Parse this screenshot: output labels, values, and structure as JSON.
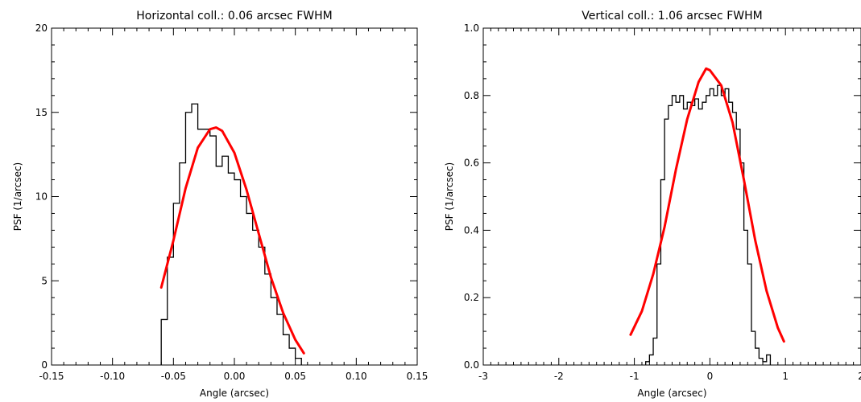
{
  "chart_data": [
    {
      "type": "line",
      "title": "Horizontal coll.: 0.06 arcsec FWHM",
      "xlabel": "Angle (arcsec)",
      "ylabel": "PSF (1/arcsec)",
      "xlim": [
        -0.15,
        0.15
      ],
      "ylim": [
        0,
        20
      ],
      "xticks": [
        -0.15,
        -0.1,
        -0.05,
        0.0,
        0.05,
        0.1,
        0.15
      ],
      "xtick_labels": [
        "-0.15",
        "-0.10",
        "-0.05",
        "0.00",
        "0.05",
        "0.10",
        "0.15"
      ],
      "yticks": [
        0,
        5,
        10,
        15,
        20
      ],
      "ytick_labels": [
        "0",
        "5",
        "10",
        "15",
        "20"
      ],
      "x_minor_step": 0.01,
      "y_minor_step": 1,
      "grid": false,
      "series": [
        {
          "kind": "histogram",
          "color": "#000000",
          "bin_edges": [
            -0.06,
            -0.055,
            -0.05,
            -0.045,
            -0.04,
            -0.035,
            -0.03,
            -0.025,
            -0.02,
            -0.015,
            -0.01,
            -0.005,
            0.0,
            0.005,
            0.01,
            0.015,
            0.02,
            0.025,
            0.03,
            0.035,
            0.04,
            0.045,
            0.05,
            0.055
          ],
          "values": [
            2.7,
            6.4,
            9.6,
            12.0,
            15.0,
            15.5,
            14.0,
            14.0,
            13.6,
            11.8,
            12.4,
            11.4,
            11.0,
            10.0,
            9.0,
            8.0,
            7.0,
            5.4,
            4.0,
            3.0,
            1.8,
            1.0,
            0.4
          ]
        },
        {
          "kind": "fit",
          "color": "#ff0000",
          "x": [
            -0.06,
            -0.05,
            -0.04,
            -0.03,
            -0.02,
            -0.015,
            -0.01,
            0.0,
            0.01,
            0.02,
            0.03,
            0.04,
            0.05,
            0.057
          ],
          "y": [
            4.6,
            7.4,
            10.5,
            12.9,
            14.0,
            14.1,
            13.9,
            12.6,
            10.4,
            7.8,
            5.2,
            3.1,
            1.5,
            0.7
          ]
        }
      ]
    },
    {
      "type": "line",
      "title": "Vertical coll.: 1.06 arcsec FWHM",
      "xlabel": "Angle (arcsec)",
      "ylabel": "PSF (1/arcsec)",
      "xlim": [
        -3,
        2
      ],
      "ylim": [
        0,
        1.0
      ],
      "xticks": [
        -3,
        -2,
        -1,
        0,
        1,
        2
      ],
      "xtick_labels": [
        "-3",
        "-2",
        "-1",
        "0",
        "1",
        "2"
      ],
      "yticks": [
        0,
        0.2,
        0.4,
        0.6,
        0.8,
        1.0
      ],
      "ytick_labels": [
        "0.0",
        "0.2",
        "0.4",
        "0.6",
        "0.8",
        "1.0"
      ],
      "x_minor_step": 0.1,
      "y_minor_step": 0.05,
      "grid": false,
      "series": [
        {
          "kind": "histogram",
          "color": "#000000",
          "bin_edges": [
            -0.85,
            -0.8,
            -0.75,
            -0.7,
            -0.65,
            -0.6,
            -0.55,
            -0.5,
            -0.45,
            -0.4,
            -0.35,
            -0.3,
            -0.25,
            -0.2,
            -0.15,
            -0.1,
            -0.05,
            0.0,
            0.05,
            0.1,
            0.15,
            0.2,
            0.25,
            0.3,
            0.35,
            0.4,
            0.45,
            0.5,
            0.55,
            0.6,
            0.65,
            0.7,
            0.75,
            0.8
          ],
          "values": [
            0.01,
            0.03,
            0.08,
            0.3,
            0.55,
            0.73,
            0.77,
            0.8,
            0.78,
            0.8,
            0.76,
            0.78,
            0.77,
            0.79,
            0.76,
            0.78,
            0.8,
            0.82,
            0.8,
            0.83,
            0.8,
            0.82,
            0.78,
            0.75,
            0.7,
            0.6,
            0.4,
            0.3,
            0.1,
            0.05,
            0.02,
            0.01,
            0.03
          ]
        },
        {
          "kind": "fit",
          "color": "#ff0000",
          "x": [
            -1.05,
            -0.9,
            -0.75,
            -0.6,
            -0.45,
            -0.3,
            -0.15,
            -0.05,
            0.0,
            0.15,
            0.3,
            0.45,
            0.6,
            0.75,
            0.9,
            0.98
          ],
          "y": [
            0.09,
            0.16,
            0.27,
            0.41,
            0.58,
            0.73,
            0.84,
            0.88,
            0.875,
            0.83,
            0.72,
            0.55,
            0.37,
            0.22,
            0.11,
            0.07
          ]
        }
      ]
    }
  ]
}
